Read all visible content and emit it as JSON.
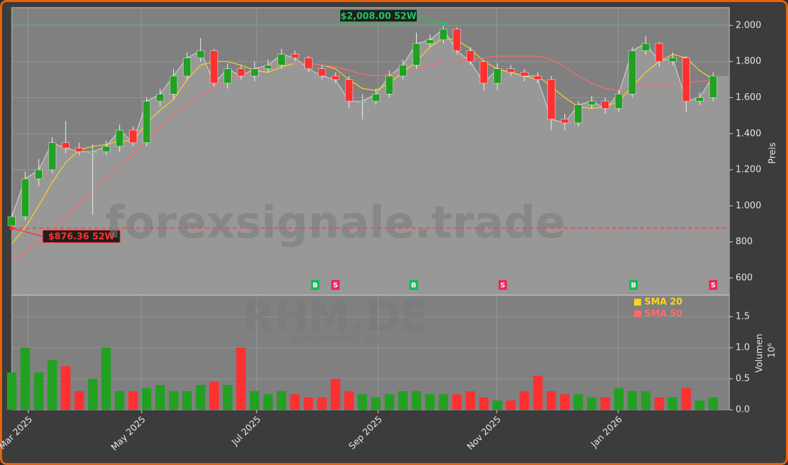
{
  "chart_data": [
    {
      "type": "candlestick",
      "ylabel": "Preis",
      "watermark": "forexsignale.trade",
      "x": [
        0,
        1,
        2,
        3,
        4,
        5,
        6,
        7,
        8,
        9,
        10,
        11,
        12,
        13,
        14,
        15,
        16,
        17,
        18,
        19,
        20,
        21,
        22,
        23,
        24,
        25,
        26,
        27,
        28,
        29,
        30,
        31,
        32,
        33,
        34,
        35,
        36,
        37,
        38,
        39,
        40,
        41,
        42,
        43,
        44,
        45,
        46,
        47,
        48,
        49,
        50,
        51,
        52
      ],
      "open": [
        890,
        940,
        1150,
        1200,
        1350,
        1320,
        1300,
        1300,
        1330,
        1420,
        1350,
        1580,
        1620,
        1720,
        1820,
        1860,
        1680,
        1760,
        1720,
        1760,
        1780,
        1840,
        1820,
        1760,
        1720,
        1700,
        1580,
        1580,
        1620,
        1720,
        1780,
        1900,
        1920,
        1980,
        1860,
        1800,
        1680,
        1760,
        1740,
        1720,
        1700,
        1480,
        1460,
        1560,
        1580,
        1540,
        1620,
        1860,
        1900,
        1800,
        1820,
        1580,
        1600
      ],
      "high": [
        960,
        1190,
        1260,
        1380,
        1470,
        1350,
        1340,
        1360,
        1450,
        1440,
        1600,
        1650,
        1760,
        1850,
        1930,
        1870,
        1790,
        1780,
        1800,
        1810,
        1870,
        1860,
        1830,
        1780,
        1740,
        1720,
        1620,
        1650,
        1750,
        1810,
        1960,
        1950,
        2008,
        1990,
        1880,
        1810,
        1790,
        1780,
        1760,
        1740,
        1720,
        1510,
        1580,
        1610,
        1600,
        1640,
        1880,
        1940,
        1910,
        1850,
        1830,
        1630,
        1740
      ],
      "low": [
        876.36,
        920,
        1110,
        1180,
        1290,
        1280,
        950,
        1280,
        1300,
        1330,
        1330,
        1550,
        1590,
        1700,
        1800,
        1660,
        1650,
        1700,
        1690,
        1740,
        1760,
        1800,
        1740,
        1700,
        1680,
        1540,
        1480,
        1560,
        1600,
        1700,
        1760,
        1880,
        1900,
        1840,
        1780,
        1640,
        1640,
        1720,
        1690,
        1680,
        1420,
        1420,
        1440,
        1540,
        1510,
        1520,
        1600,
        1840,
        1770,
        1780,
        1520,
        1560,
        1580
      ],
      "close": [
        940,
        1150,
        1200,
        1350,
        1320,
        1300,
        1300,
        1330,
        1420,
        1350,
        1580,
        1620,
        1720,
        1820,
        1860,
        1680,
        1760,
        1720,
        1760,
        1780,
        1840,
        1820,
        1760,
        1720,
        1700,
        1580,
        1580,
        1620,
        1720,
        1780,
        1900,
        1920,
        1980,
        1860,
        1800,
        1680,
        1760,
        1740,
        1720,
        1700,
        1480,
        1460,
        1560,
        1580,
        1540,
        1620,
        1860,
        1900,
        1800,
        1820,
        1580,
        1600,
        1720
      ],
      "up_color": "#22a022",
      "down_color": "#ff3030",
      "area_color": "#989898",
      "series": [
        {
          "name": "SMA 20",
          "color": "#ffd21f",
          "values": [
            790,
            880,
            1000,
            1130,
            1240,
            1310,
            1330,
            1340,
            1360,
            1360,
            1460,
            1530,
            1590,
            1700,
            1780,
            1800,
            1800,
            1780,
            1750,
            1740,
            1770,
            1790,
            1790,
            1780,
            1760,
            1700,
            1650,
            1640,
            1680,
            1740,
            1800,
            1880,
            1930,
            1920,
            1870,
            1800,
            1760,
            1740,
            1720,
            1720,
            1660,
            1600,
            1550,
            1540,
            1550,
            1580,
            1660,
            1740,
            1800,
            1840,
            1820,
            1750,
            1700
          ]
        },
        {
          "name": "SMA 50",
          "color": "#ff6b6b",
          "values": [
            700,
            740,
            800,
            870,
            940,
            1010,
            1080,
            1150,
            1220,
            1290,
            1360,
            1440,
            1500,
            1560,
            1610,
            1650,
            1690,
            1720,
            1750,
            1770,
            1790,
            1790,
            1790,
            1780,
            1770,
            1750,
            1730,
            1720,
            1730,
            1740,
            1760,
            1780,
            1800,
            1800,
            1810,
            1820,
            1830,
            1830,
            1830,
            1830,
            1810,
            1770,
            1720,
            1680,
            1650,
            1640,
            1650,
            1670,
            1670,
            1680,
            1680,
            1690,
            1700
          ]
        }
      ],
      "annotations": [
        {
          "text": "$2,008.00 52W",
          "x": 32,
          "value": 2008,
          "color": "#22c55e"
        },
        {
          "text": "$876.36 52W",
          "x": 0,
          "value": 876.36,
          "color": "#ff3030"
        }
      ],
      "signals": [
        {
          "x": 22.5,
          "label": "B",
          "color": "#16b85a"
        },
        {
          "x": 24,
          "label": "S",
          "color": "#f0245a"
        },
        {
          "x": 29.8,
          "label": "B",
          "color": "#16b85a"
        },
        {
          "x": 36.4,
          "label": "S",
          "color": "#f0245a"
        },
        {
          "x": 46.1,
          "label": "B",
          "color": "#16b85a"
        },
        {
          "x": 52,
          "label": "S",
          "color": "#f0245a"
        }
      ],
      "xlim": [
        0,
        53.2
      ],
      "ylim": [
        508,
        2099
      ],
      "yticks": [
        600,
        800,
        {
          "value": 1000,
          "label": "1.000"
        },
        {
          "value": 1200,
          "label": "1.200"
        },
        {
          "value": 1400,
          "label": "1.400"
        },
        {
          "value": 1600,
          "label": "1.600"
        },
        {
          "value": 1800,
          "label": "1.800"
        },
        {
          "value": 2000,
          "label": "2.000"
        }
      ],
      "grid": true
    },
    {
      "type": "bar",
      "title": "RHM.DE",
      "subtitle": "Rheinmetall AG",
      "ylabel": "Volumen",
      "yunit": "10⁶",
      "x": [
        0,
        1,
        2,
        3,
        4,
        5,
        6,
        7,
        8,
        9,
        10,
        11,
        12,
        13,
        14,
        15,
        16,
        17,
        18,
        19,
        20,
        21,
        22,
        23,
        24,
        25,
        26,
        27,
        28,
        29,
        30,
        31,
        32,
        33,
        34,
        35,
        36,
        37,
        38,
        39,
        40,
        41,
        42,
        43,
        44,
        45,
        46,
        47,
        48,
        49,
        50,
        51,
        52
      ],
      "values": [
        0.6,
        1.0,
        0.6,
        0.8,
        0.7,
        0.3,
        0.5,
        1.0,
        0.3,
        0.3,
        0.35,
        0.4,
        0.3,
        0.3,
        0.4,
        0.45,
        0.4,
        1.0,
        0.3,
        0.25,
        0.3,
        0.25,
        0.2,
        0.2,
        0.5,
        0.3,
        0.25,
        0.2,
        0.25,
        0.3,
        0.3,
        0.25,
        0.25,
        0.25,
        0.3,
        0.2,
        0.15,
        0.15,
        0.3,
        0.55,
        0.3,
        0.25,
        0.25,
        0.2,
        0.2,
        0.35,
        0.3,
        0.3,
        0.2,
        0.2,
        0.35,
        0.15,
        0.2
      ],
      "xlim": [
        0,
        53.2
      ],
      "ylim": [
        0,
        1.844
      ],
      "xticks": [
        {
          "value": 1.23,
          "label": "Mar 2025"
        },
        {
          "value": 9.62,
          "label": "May 2025"
        },
        {
          "value": 18.16,
          "label": "Jul 2025"
        },
        {
          "value": 27.16,
          "label": "Sep 2025"
        },
        {
          "value": 35.96,
          "label": "Nov 2025"
        },
        {
          "value": 44.96,
          "label": "Jan 2026"
        }
      ],
      "yticks": [
        {
          "value": 0,
          "label": "0.0"
        },
        0.5,
        {
          "value": 1,
          "label": "1.0"
        },
        1.5
      ],
      "legend": "upper right",
      "grid": true
    }
  ]
}
